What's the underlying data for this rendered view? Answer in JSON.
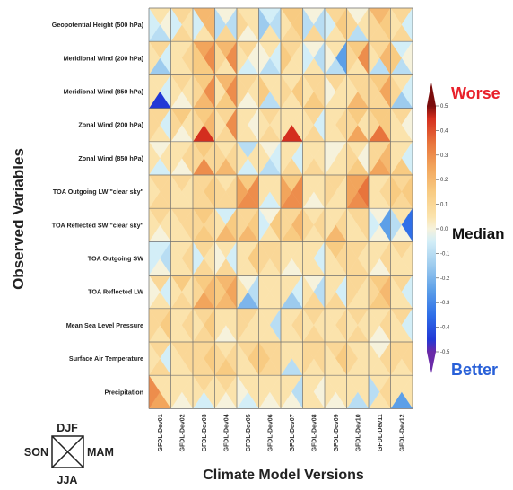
{
  "chart_data": {
    "type": "heatmap",
    "cell_layout": "portrait-diagram: each cell split into four triangles (top=DJF, right=MAM, bottom=JJA, left=SON)",
    "xlabel": "Climate Model Versions",
    "ylabel": "Observed Variables",
    "categories": [
      "GFDL-Dev01",
      "GFDL-Dev02",
      "GFDL-Dev03",
      "GFDL-Dev04",
      "GFDL-Dev05",
      "GFDL-Dev06",
      "GFDL-Dev07",
      "GFDL-Dev08",
      "GFDL-Dev09",
      "GFDL-Dev10",
      "GFDL-Dev11",
      "GFDL-Dev12"
    ],
    "variables": [
      "Geopotential Height (500 hPa)",
      "Meridional Wind (200 hPa)",
      "Meridional Wind (850 hPa)",
      "Zonal Wind (200 hPa)",
      "Zonal Wind (850 hPa)",
      "TOA Outgoing LW \"clear sky\"",
      "TOA Reflected SW \"clear sky\"",
      "TOA Outgoing SW",
      "TOA Reflected LW",
      "Mean Sea Level Pressure",
      "Surface Air Temperature",
      "Precipitation"
    ],
    "seasons": {
      "top": "DJF",
      "right": "MAM",
      "bottom": "JJA",
      "left": "SON"
    },
    "season_order": [
      "DJF",
      "MAM",
      "JJA",
      "SON"
    ],
    "values": [
      [
        [
          0.05,
          0.0,
          -0.1,
          -0.05
        ],
        [
          0.1,
          0.05,
          0.1,
          -0.05
        ],
        [
          0.2,
          0.2,
          0.05,
          -0.05
        ],
        [
          0.0,
          -0.1,
          0.1,
          -0.1
        ],
        [
          0.05,
          0.05,
          0.0,
          0.1
        ],
        [
          -0.05,
          -0.1,
          0.05,
          -0.15
        ],
        [
          0.15,
          0.15,
          0.1,
          0.05
        ],
        [
          0.0,
          -0.1,
          0.1,
          -0.1
        ],
        [
          0.1,
          0.15,
          0.05,
          -0.05
        ],
        [
          0.0,
          0.05,
          -0.1,
          0.1
        ],
        [
          0.2,
          0.15,
          0.1,
          0.1
        ],
        [
          0.1,
          -0.05,
          0.1,
          0.05
        ]
      ],
      [
        [
          0.1,
          -0.05,
          -0.15,
          0.05
        ],
        [
          0.05,
          0.1,
          0.05,
          0.05
        ],
        [
          0.25,
          0.3,
          0.15,
          0.15
        ],
        [
          0.2,
          0.3,
          0.05,
          0.1
        ],
        [
          0.1,
          0.0,
          -0.05,
          0.05
        ],
        [
          0.05,
          -0.05,
          -0.1,
          0.0
        ],
        [
          0.1,
          0.05,
          0.05,
          0.15
        ],
        [
          0.0,
          -0.1,
          0.05,
          -0.05
        ],
        [
          0.05,
          -0.25,
          -0.1,
          0.0
        ],
        [
          0.15,
          0.3,
          0.05,
          0.1
        ],
        [
          0.1,
          0.2,
          -0.1,
          0.05
        ],
        [
          -0.05,
          0.0,
          -0.1,
          0.15
        ]
      ],
      [
        [
          0.05,
          -0.05,
          -0.45,
          0.05
        ],
        [
          0.1,
          0.05,
          0.0,
          0.05
        ],
        [
          0.15,
          0.3,
          0.2,
          0.1
        ],
        [
          0.2,
          0.3,
          0.15,
          0.05
        ],
        [
          0.1,
          0.05,
          0.0,
          0.1
        ],
        [
          0.05,
          0.05,
          -0.1,
          0.15
        ],
        [
          0.05,
          0.15,
          0.05,
          0.1
        ],
        [
          0.1,
          0.1,
          0.15,
          0.05
        ],
        [
          0.1,
          0.05,
          0.05,
          0.0
        ],
        [
          0.1,
          0.1,
          0.2,
          0.05
        ],
        [
          0.15,
          0.25,
          0.1,
          0.1
        ],
        [
          0.05,
          -0.05,
          -0.15,
          0.1
        ]
      ],
      [
        [
          0.1,
          -0.05,
          0.05,
          0.1
        ],
        [
          0.15,
          0.05,
          0.0,
          0.1
        ],
        [
          0.15,
          0.2,
          0.45,
          0.1
        ],
        [
          0.1,
          0.3,
          0.1,
          0.05
        ],
        [
          0.05,
          0.0,
          0.05,
          0.05
        ],
        [
          0.1,
          0.05,
          0.1,
          0.05
        ],
        [
          0.05,
          0.05,
          0.45,
          0.05
        ],
        [
          0.1,
          -0.05,
          0.1,
          0.05
        ],
        [
          0.05,
          0.1,
          0.05,
          0.05
        ],
        [
          0.15,
          0.05,
          0.25,
          0.1
        ],
        [
          0.15,
          0.15,
          0.35,
          0.1
        ],
        [
          0.1,
          0.0,
          0.05,
          0.05
        ]
      ],
      [
        [
          0.0,
          0.05,
          -0.05,
          0.05
        ],
        [
          0.05,
          0.1,
          0.0,
          0.05
        ],
        [
          0.15,
          0.1,
          0.3,
          0.1
        ],
        [
          0.05,
          0.1,
          0.2,
          0.1
        ],
        [
          -0.1,
          0.05,
          -0.05,
          0.05
        ],
        [
          0.0,
          -0.05,
          -0.1,
          0.05
        ],
        [
          0.05,
          -0.05,
          0.1,
          0.05
        ],
        [
          0.05,
          0.05,
          0.1,
          0.05
        ],
        [
          0.0,
          0.05,
          0.05,
          0.0
        ],
        [
          0.05,
          0.0,
          0.15,
          0.1
        ],
        [
          0.1,
          0.2,
          0.25,
          0.1
        ],
        [
          0.05,
          -0.05,
          0.15,
          0.05
        ]
      ],
      [
        [
          0.1,
          0.1,
          0.1,
          0.05
        ],
        [
          0.1,
          0.05,
          0.05,
          0.05
        ],
        [
          0.1,
          0.15,
          0.1,
          0.1
        ],
        [
          0.05,
          0.1,
          0.1,
          0.1
        ],
        [
          0.15,
          0.3,
          0.3,
          0.25
        ],
        [
          0.05,
          0.05,
          -0.05,
          0.05
        ],
        [
          0.15,
          0.3,
          0.3,
          0.25
        ],
        [
          0.05,
          0.05,
          0.0,
          0.05
        ],
        [
          0.1,
          0.05,
          0.05,
          0.1
        ],
        [
          0.25,
          0.35,
          0.3,
          0.25
        ],
        [
          0.05,
          0.1,
          0.05,
          0.05
        ],
        [
          0.1,
          0.15,
          0.1,
          0.15
        ]
      ],
      [
        [
          0.1,
          0.05,
          0.0,
          0.05
        ],
        [
          0.1,
          0.1,
          0.05,
          0.05
        ],
        [
          0.15,
          0.1,
          0.15,
          0.1
        ],
        [
          -0.05,
          0.15,
          0.2,
          0.05
        ],
        [
          0.1,
          0.15,
          0.2,
          0.1
        ],
        [
          0.0,
          0.15,
          0.05,
          -0.05
        ],
        [
          0.1,
          0.2,
          0.15,
          0.1
        ],
        [
          0.05,
          0.1,
          0.05,
          0.1
        ],
        [
          0.05,
          0.1,
          0.2,
          0.05
        ],
        [
          0.1,
          0.1,
          0.05,
          0.05
        ],
        [
          0.0,
          -0.25,
          0.0,
          -0.05
        ],
        [
          0.05,
          -0.35,
          0.0,
          -0.1
        ]
      ],
      [
        [
          -0.05,
          -0.1,
          0.0,
          -0.05
        ],
        [
          0.05,
          0.1,
          0.05,
          0.05
        ],
        [
          0.1,
          0.05,
          0.1,
          -0.05
        ],
        [
          0.05,
          -0.05,
          0.1,
          0.0
        ],
        [
          0.05,
          0.15,
          0.05,
          0.05
        ],
        [
          0.1,
          0.1,
          0.05,
          0.1
        ],
        [
          0.05,
          0.05,
          0.0,
          0.05
        ],
        [
          0.05,
          -0.05,
          0.05,
          0.05
        ],
        [
          0.15,
          0.1,
          0.05,
          0.05
        ],
        [
          0.1,
          0.05,
          0.1,
          0.1
        ],
        [
          0.05,
          0.1,
          0.0,
          0.05
        ],
        [
          0.1,
          0.05,
          0.05,
          0.05
        ]
      ],
      [
        [
          0.1,
          -0.05,
          0.05,
          0.0
        ],
        [
          0.15,
          0.05,
          0.1,
          0.05
        ],
        [
          0.15,
          0.2,
          0.25,
          0.1
        ],
        [
          0.2,
          0.25,
          0.2,
          0.15
        ],
        [
          0.0,
          -0.1,
          -0.2,
          0.05
        ],
        [
          0.05,
          0.05,
          0.05,
          0.05
        ],
        [
          0.05,
          -0.05,
          -0.15,
          0.05
        ],
        [
          0.0,
          -0.1,
          0.1,
          0.05
        ],
        [
          0.05,
          -0.05,
          0.1,
          0.05
        ],
        [
          0.1,
          0.05,
          0.05,
          0.1
        ],
        [
          0.15,
          0.2,
          0.15,
          0.1
        ],
        [
          0.1,
          -0.05,
          0.05,
          0.05
        ]
      ],
      [
        [
          0.1,
          0.15,
          0.05,
          0.1
        ],
        [
          0.05,
          0.1,
          0.05,
          0.05
        ],
        [
          0.1,
          0.15,
          0.1,
          0.05
        ],
        [
          0.05,
          0.05,
          0.0,
          0.05
        ],
        [
          0.1,
          0.05,
          0.05,
          0.1
        ],
        [
          0.05,
          -0.1,
          0.05,
          0.05
        ],
        [
          0.05,
          0.1,
          0.05,
          0.05
        ],
        [
          0.1,
          0.05,
          0.1,
          0.05
        ],
        [
          0.05,
          0.1,
          0.05,
          0.05
        ],
        [
          0.1,
          0.05,
          0.1,
          0.05
        ],
        [
          0.05,
          0.1,
          0.0,
          0.05
        ],
        [
          0.1,
          -0.05,
          0.05,
          0.05
        ]
      ],
      [
        [
          0.1,
          -0.05,
          0.1,
          0.05
        ],
        [
          0.1,
          0.1,
          0.05,
          0.05
        ],
        [
          0.1,
          0.15,
          0.1,
          0.1
        ],
        [
          0.05,
          0.1,
          0.15,
          0.1
        ],
        [
          0.1,
          0.15,
          0.05,
          0.05
        ],
        [
          0.1,
          0.1,
          0.1,
          0.15
        ],
        [
          0.05,
          0.05,
          -0.1,
          0.05
        ],
        [
          0.1,
          0.1,
          0.05,
          0.1
        ],
        [
          0.1,
          0.15,
          0.05,
          0.05
        ],
        [
          0.05,
          0.05,
          0.05,
          0.1
        ],
        [
          0.0,
          0.1,
          0.05,
          0.05
        ],
        [
          0.1,
          0.1,
          0.05,
          0.1
        ]
      ],
      [
        [
          0.05,
          0.05,
          0.25,
          0.3
        ],
        [
          0.05,
          0.05,
          0.0,
          0.05
        ],
        [
          0.1,
          0.05,
          -0.05,
          0.05
        ],
        [
          0.1,
          0.05,
          0.0,
          0.05
        ],
        [
          0.05,
          0.05,
          -0.05,
          0.0
        ],
        [
          0.05,
          0.05,
          0.0,
          0.05
        ],
        [
          0.05,
          -0.1,
          0.0,
          0.05
        ],
        [
          0.05,
          0.0,
          0.05,
          0.05
        ],
        [
          0.05,
          0.05,
          0.0,
          0.05
        ],
        [
          0.05,
          0.05,
          -0.1,
          0.05
        ],
        [
          0.05,
          0.1,
          0.05,
          -0.1
        ],
        [
          0.05,
          0.05,
          -0.25,
          0.05
        ]
      ]
    ],
    "colorbar": {
      "min": -0.5,
      "max": 0.5,
      "ticks": [
        "0.5",
        "0.4",
        "0.3",
        "0.2",
        "0.1",
        "0.0",
        "-0.1",
        "-0.2",
        "-0.3",
        "-0.4",
        "-0.5"
      ],
      "stops": [
        {
          "v": -0.5,
          "color": "#6a2aa8"
        },
        {
          "v": -0.45,
          "color": "#2238d6"
        },
        {
          "v": -0.35,
          "color": "#2f6fe8"
        },
        {
          "v": -0.25,
          "color": "#5c9fe8"
        },
        {
          "v": -0.15,
          "color": "#9dcbee"
        },
        {
          "v": -0.05,
          "color": "#d3eef7"
        },
        {
          "v": 0.0,
          "color": "#f6f2dc"
        },
        {
          "v": 0.05,
          "color": "#fbe3ac"
        },
        {
          "v": 0.15,
          "color": "#f8cb82"
        },
        {
          "v": 0.25,
          "color": "#f2a55c"
        },
        {
          "v": 0.35,
          "color": "#e8743c"
        },
        {
          "v": 0.45,
          "color": "#d42e1e"
        },
        {
          "v": 0.5,
          "color": "#7a0c0c"
        }
      ],
      "label_top": "Worse",
      "label_mid": "Median",
      "label_bottom": "Better",
      "label_top_color": "#e8202a",
      "label_bottom_color": "#2860d8"
    }
  }
}
